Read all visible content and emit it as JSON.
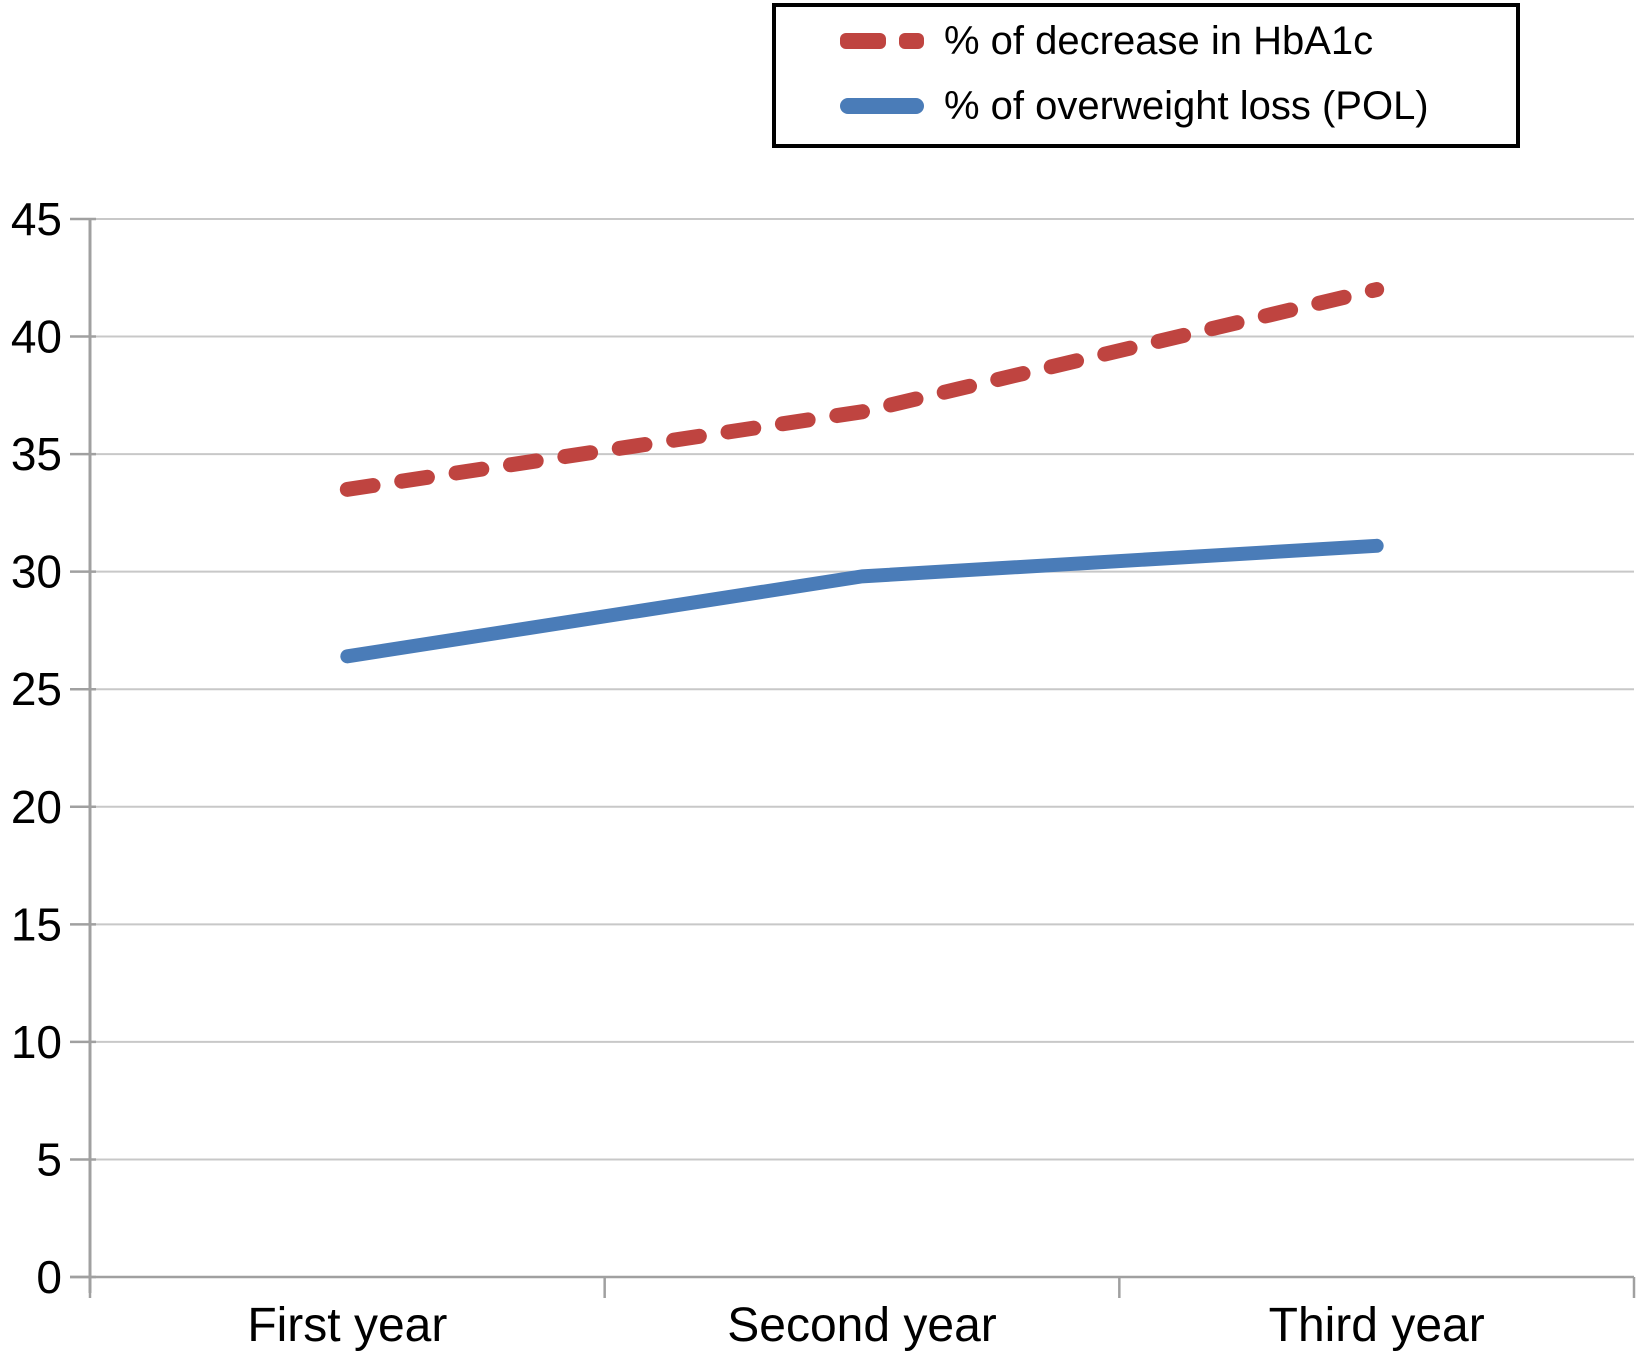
{
  "figure": {
    "background_color": "#ffffff",
    "text_color": "#000000",
    "legend_border_color": "#000000"
  },
  "chart_data": {
    "type": "line",
    "categories": [
      "First year",
      "Second year",
      "Third year"
    ],
    "series": [
      {
        "name": "% of decrease in HbA1c",
        "values": [
          33.5,
          36.8,
          42
        ],
        "color": "#bf4440",
        "line_style": "dashed"
      },
      {
        "name": "% of overweight loss (POL)",
        "values": [
          26.4,
          29.8,
          31.1
        ],
        "color": "#4a7cb8",
        "line_style": "solid"
      }
    ],
    "ylim": [
      0,
      45
    ],
    "yticks": [
      0,
      5,
      10,
      15,
      20,
      25,
      30,
      35,
      40,
      45
    ],
    "ytick_labels": [
      "0",
      "5",
      "10",
      "15",
      "20",
      "25",
      "30",
      "35",
      "40",
      "45"
    ],
    "grid": true,
    "grid_color": "#c8c8c8",
    "axis_color": "#a0a0a0",
    "legend_position": "top-right"
  }
}
